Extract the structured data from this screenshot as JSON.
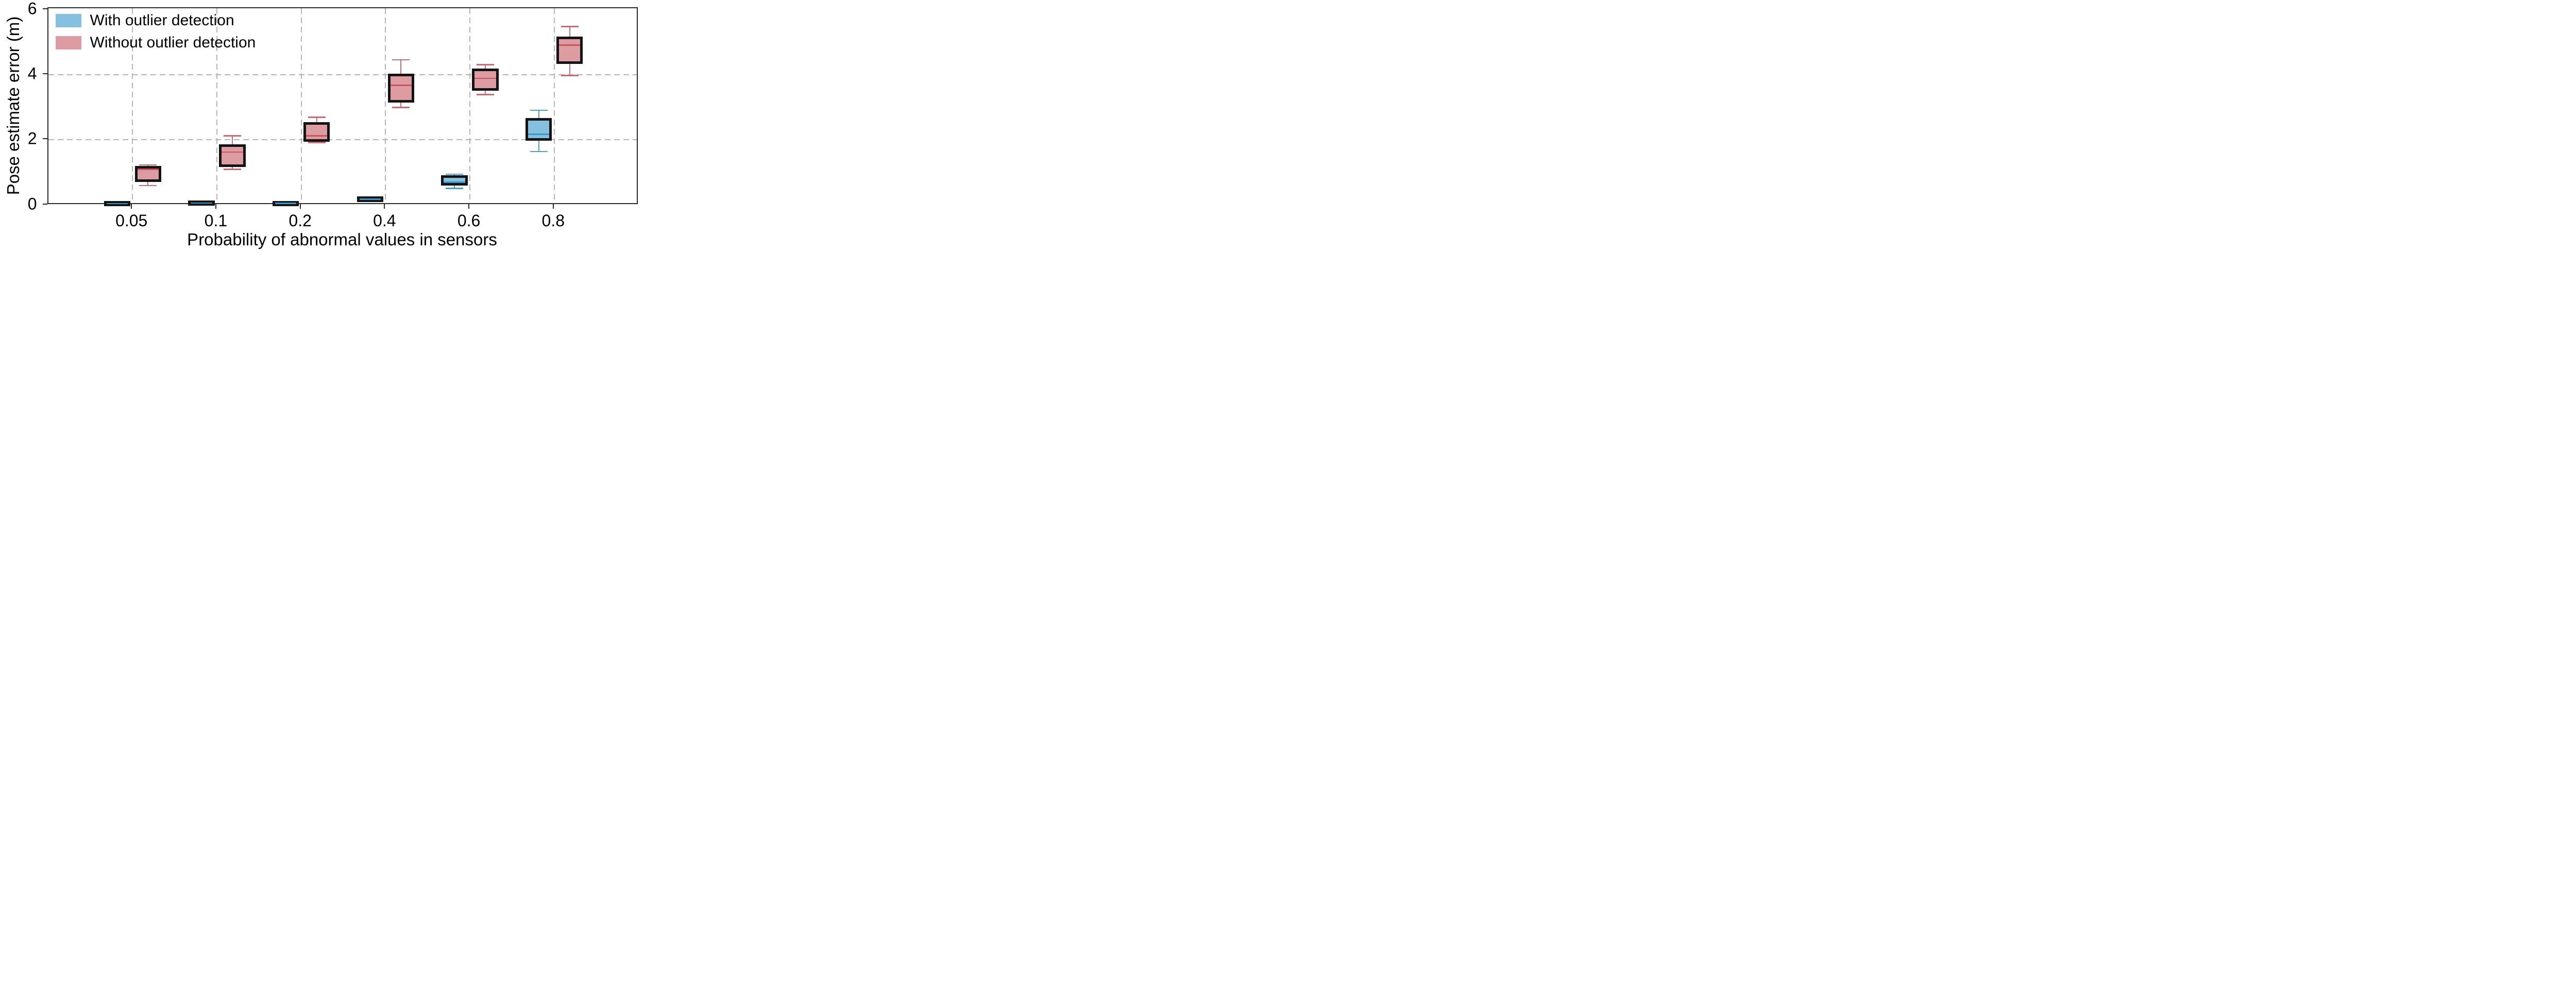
{
  "chart_data": {
    "type": "boxplot",
    "title": "",
    "xlabel": "Probability of abnormal values in sensors",
    "ylabel": "Pose estimate error (m)",
    "categories": [
      "0.05",
      "0.1",
      "0.2",
      "0.4",
      "0.6",
      "0.8"
    ],
    "yticks": [
      0,
      2,
      4,
      6
    ],
    "grid_y": [
      2,
      4
    ],
    "ylim": [
      0,
      6.05
    ],
    "grid_style": "dashed",
    "legend_position": "upper-left",
    "series": [
      {
        "name": "With outlier detection",
        "fill": "#85C1DE",
        "line": "#4D9FCC",
        "median": "#3E97C9",
        "border": "#141414",
        "boxes": [
          {
            "category": "0.05",
            "lo": 0.0,
            "q1": 0.01,
            "med": 0.04,
            "q3": 0.08,
            "hi": 0.09
          },
          {
            "category": "0.1",
            "lo": 0.01,
            "q1": 0.03,
            "med": 0.06,
            "q3": 0.1,
            "hi": 0.11
          },
          {
            "category": "0.2",
            "lo": 0.01,
            "q1": 0.02,
            "med": 0.05,
            "q3": 0.09,
            "hi": 0.1
          },
          {
            "category": "0.4",
            "lo": 0.11,
            "q1": 0.13,
            "med": 0.18,
            "q3": 0.23,
            "hi": 0.25
          },
          {
            "category": "0.6",
            "lo": 0.51,
            "q1": 0.64,
            "med": 0.7,
            "q3": 0.87,
            "hi": 0.95
          },
          {
            "category": "0.8",
            "lo": 1.64,
            "q1": 2.01,
            "med": 2.17,
            "q3": 2.64,
            "hi": 2.91
          }
        ]
      },
      {
        "name": "Without outlier detection",
        "fill": "#DD9CA1",
        "line": "#CC6B74",
        "median": "#C8545E",
        "border": "#141414",
        "boxes": [
          {
            "category": "0.05",
            "lo": 0.6,
            "q1": 0.75,
            "med": 1.1,
            "q3": 1.16,
            "hi": 1.23
          },
          {
            "category": "0.1",
            "lo": 1.1,
            "q1": 1.21,
            "med": 1.63,
            "q3": 1.82,
            "hi": 2.13
          },
          {
            "category": "0.2",
            "lo": 1.92,
            "q1": 1.98,
            "med": 2.13,
            "q3": 2.51,
            "hi": 2.7
          },
          {
            "category": "0.4",
            "lo": 3.0,
            "q1": 3.19,
            "med": 3.68,
            "q3": 4.0,
            "hi": 4.46
          },
          {
            "category": "0.6",
            "lo": 3.39,
            "q1": 3.55,
            "med": 3.89,
            "q3": 4.15,
            "hi": 4.31
          },
          {
            "category": "0.8",
            "lo": 3.98,
            "q1": 4.38,
            "med": 4.91,
            "q3": 5.14,
            "hi": 5.48
          }
        ]
      }
    ]
  }
}
